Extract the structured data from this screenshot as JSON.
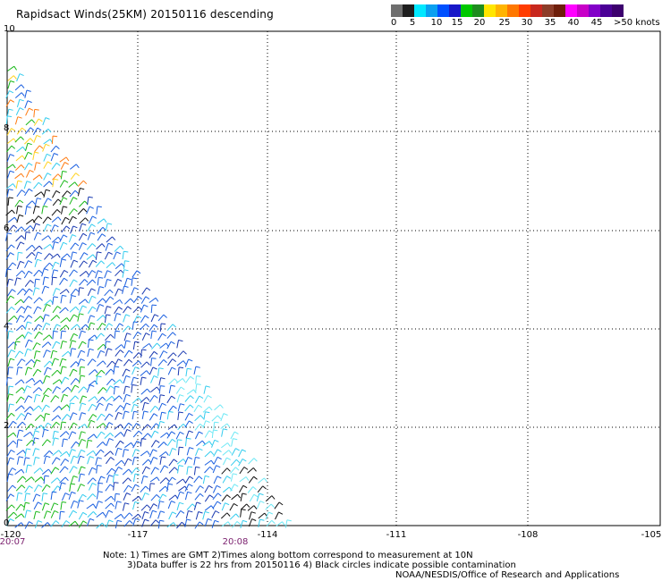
{
  "title": "Rapidsact Winds(25KM) 20150116 descending",
  "legend": {
    "colors": [
      "#6e6e6e",
      "#1e1e1e",
      "#00e8ff",
      "#0aa0f0",
      "#0050ff",
      "#1818c8",
      "#00c800",
      "#1e8c1e",
      "#ffe600",
      "#ffb400",
      "#ff7800",
      "#ff3c00",
      "#c8281e",
      "#8c3c28",
      "#6e1e0a",
      "#ff00ff",
      "#c800c8",
      "#8200c8",
      "#4b0096",
      "#3c006e"
    ],
    "labels": [
      "0",
      "5",
      "10",
      "15",
      "20",
      "25",
      "30",
      "35",
      "40",
      "45",
      ">50 knots"
    ]
  },
  "axes": {
    "x_ticks": [
      "-120",
      "-117",
      "-114",
      "-111",
      "-108",
      "-105"
    ],
    "y_ticks": [
      "10",
      "8",
      "6",
      "4",
      "2",
      "0"
    ]
  },
  "times": [
    "20:07",
    "20:08"
  ],
  "notes": [
    "Note: 1) Times are GMT 2)Times along bottom correspond to measurement at 10N",
    "3)Data buffer is 22 hrs from 20150116 4) Black circles indicate possible contamination",
    "NOAA/NESDIS/Office of Research and Applications"
  ]
}
